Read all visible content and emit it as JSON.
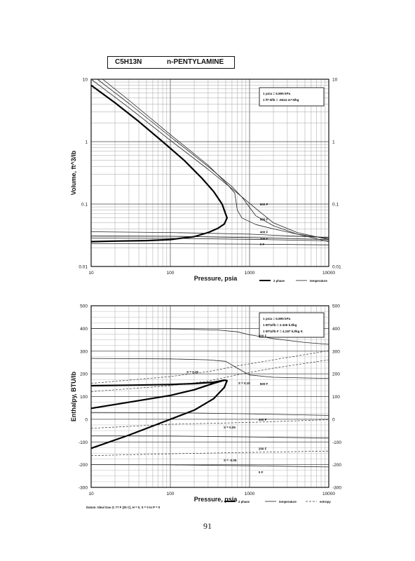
{
  "header": {
    "formula": "C5H13N",
    "compound": "n-PENTYLAMINE"
  },
  "page_number": "91",
  "chart_data": [
    {
      "type": "line",
      "xscale": "log",
      "yscale": "log",
      "xlim": [
        10,
        10000
      ],
      "ylim": [
        0.01,
        10
      ],
      "xlabel": "Pressure,  psia",
      "ylabel": "Volume,  ft^3/lb",
      "x_ticks": [
        "10",
        "100",
        "1000",
        "10000"
      ],
      "y_ticks": [
        "0.01",
        "0.1",
        "1",
        "10"
      ],
      "grid": true,
      "legend": {
        "placement": "bottom-right",
        "entries": [
          "2 phase",
          "temperature"
        ]
      },
      "conversion_notes": [
        "1 psia = 6.895 kPa",
        "1 ft^3/lb = .0624 m^3/kg"
      ],
      "series": [
        {
          "role": "2 phase",
          "x": [
            10,
            20,
            40,
            80,
            150,
            250,
            350,
            450,
            520,
            480,
            400,
            300,
            200,
            100,
            50,
            20,
            10
          ],
          "y": [
            8,
            4.2,
            2.1,
            1.0,
            0.5,
            0.26,
            0.16,
            0.1,
            0.06,
            0.048,
            0.041,
            0.035,
            0.03,
            0.027,
            0.026,
            0.0255,
            0.025
          ]
        },
        {
          "role": "temperature",
          "label": "600 F",
          "x": [
            10,
            30,
            100,
            300,
            700,
            1200,
            2000,
            4000,
            10000
          ],
          "y": [
            10,
            3.5,
            1.05,
            0.36,
            0.15,
            0.085,
            0.05,
            0.035,
            0.027
          ]
        },
        {
          "role": "temperature",
          "label": "",
          "x": [
            12,
            30,
            100,
            300,
            600,
            800,
            1200,
            2000,
            4000,
            10000
          ],
          "y": [
            10,
            4.1,
            1.2,
            0.4,
            0.19,
            0.13,
            0.065,
            0.045,
            0.033,
            0.025
          ]
        },
        {
          "role": "temperature",
          "label": "500 F",
          "x": [
            14,
            30,
            100,
            300,
            500,
            650,
            700,
            800,
            1200,
            2000,
            4000,
            10000
          ],
          "y": [
            10,
            4.6,
            1.3,
            0.42,
            0.22,
            0.15,
            0.08,
            0.06,
            0.047,
            0.04,
            0.033,
            0.028
          ]
        },
        {
          "role": "temperature",
          "label": "400 F",
          "x": [
            10,
            100,
            1000,
            10000
          ],
          "y": [
            0.036,
            0.035,
            0.033,
            0.029
          ]
        },
        {
          "role": "temperature",
          "label": "300 F",
          "x": [
            10,
            100,
            1000,
            10000
          ],
          "y": [
            0.031,
            0.0305,
            0.029,
            0.027
          ]
        },
        {
          "role": "temperature",
          "label": "200 F",
          "x": [
            10,
            100,
            1000,
            10000
          ],
          "y": [
            0.0285,
            0.0282,
            0.0272,
            0.0258
          ]
        },
        {
          "role": "temperature",
          "label": "0 F",
          "x": [
            10,
            100,
            1000,
            10000
          ],
          "y": [
            0.0232,
            0.0231,
            0.0228,
            0.0222
          ]
        }
      ],
      "curve_labels": [
        {
          "text": "600 F",
          "x": 1350,
          "y": 0.1
        },
        {
          "text": "500 F",
          "x": 1350,
          "y": 0.057
        },
        {
          "text": "400 F",
          "x": 1350,
          "y": 0.036
        },
        {
          "text": "200 F",
          "x": 1350,
          "y": 0.028
        },
        {
          "text": "0 F",
          "x": 1350,
          "y": 0.023
        }
      ]
    },
    {
      "type": "line",
      "xscale": "log",
      "yscale": "linear",
      "xlim": [
        10,
        10000
      ],
      "ylim": [
        -300,
        500
      ],
      "xlabel": "Pressure,  psia",
      "ylabel": "Enthalpy,  BTU/lb",
      "x_ticks": [
        "10",
        "100",
        "1000",
        "10000"
      ],
      "y_ticks": [
        "-300",
        "-200",
        "-100",
        "0",
        "100",
        "200",
        "300",
        "400",
        "500"
      ],
      "grid": true,
      "legend": {
        "placement": "bottom-right",
        "entries": [
          "2 phase",
          "temperature",
          "entropy"
        ]
      },
      "footnote": "Datum: Ideal Gas @ 77 F (25 C),  H = 0,  S = 0 to P = 0",
      "conversion_notes": [
        "1 psia = 6.895 kPa",
        "1 BTU/lb = 2.326 kJ/kg",
        "1 BTU/lb F = 4.187 kJ/kg K"
      ],
      "series": [
        {
          "role": "2 phase",
          "x": [
            10,
            30,
            100,
            200,
            350,
            480,
            520,
            480,
            350,
            200,
            100,
            30,
            10
          ],
          "y": [
            48,
            75,
            105,
            130,
            158,
            172,
            170,
            140,
            90,
            40,
            0,
            -70,
            -128
          ]
        },
        {
          "role": "2 phase",
          "x": [
            10,
            30,
            100,
            200,
            350,
            480
          ],
          "y": [
            148,
            150,
            153,
            157,
            163,
            172
          ]
        },
        {
          "role": "temperature",
          "label": "600 F",
          "x": [
            10,
            100,
            400,
            700,
            1000,
            2000,
            5000,
            10000
          ],
          "y": [
            400,
            398,
            393,
            385,
            372,
            355,
            338,
            330
          ]
        },
        {
          "role": "temperature",
          "label": "500 F",
          "x": [
            10,
            100,
            300,
            500,
            700,
            1000,
            2000,
            5000,
            10000
          ],
          "y": [
            268,
            266,
            262,
            255,
            225,
            195,
            185,
            182,
            180
          ]
        },
        {
          "role": "temperature",
          "label": "400 F",
          "x": [
            10,
            100,
            1000,
            10000
          ],
          "y": [
            30,
            29,
            24,
            17
          ]
        },
        {
          "role": "temperature",
          "label": "200 F",
          "x": [
            10,
            100,
            1000,
            10000
          ],
          "y": [
            -73,
            -74,
            -78,
            -83
          ]
        },
        {
          "role": "temperature",
          "label": "0 F",
          "x": [
            10,
            100,
            1000,
            10000
          ],
          "y": [
            -200,
            -201,
            -205,
            -210
          ]
        },
        {
          "role": "entropy",
          "label": "S = 0.25",
          "x": [
            10,
            100,
            300,
            700,
            2000,
            10000
          ],
          "y": [
            158,
            188,
            210,
            235,
            262,
            302
          ]
        },
        {
          "role": "entropy",
          "label": "S = 0.15",
          "x": [
            10,
            100,
            300,
            700,
            2000,
            10000
          ],
          "y": [
            122,
            148,
            168,
            196,
            225,
            262
          ]
        },
        {
          "role": "entropy",
          "label": "S = 0.05",
          "x": [
            10,
            100,
            1000,
            10000
          ],
          "y": [
            -40,
            -22,
            -14,
            -2
          ]
        },
        {
          "role": "entropy",
          "label": "S = -0.05",
          "x": [
            10,
            100,
            1000,
            10000
          ],
          "y": [
            -160,
            -152,
            -146,
            -140
          ]
        }
      ],
      "curve_labels": [
        {
          "text": "600 F",
          "x": 1300,
          "y": 368
        },
        {
          "text": "S = 0.25",
          "x": 160,
          "y": 210
        },
        {
          "text": "S = 0.15",
          "x": 720,
          "y": 160
        },
        {
          "text": "500 F",
          "x": 1350,
          "y": 157
        },
        {
          "text": "400 F",
          "x": 1300,
          "y": 0
        },
        {
          "text": "S = 0.05",
          "x": 470,
          "y": -34
        },
        {
          "text": "200 F",
          "x": 1300,
          "y": -128
        },
        {
          "text": "S = -0.05",
          "x": 470,
          "y": -180
        },
        {
          "text": "0 F",
          "x": 1300,
          "y": -232
        }
      ]
    }
  ]
}
